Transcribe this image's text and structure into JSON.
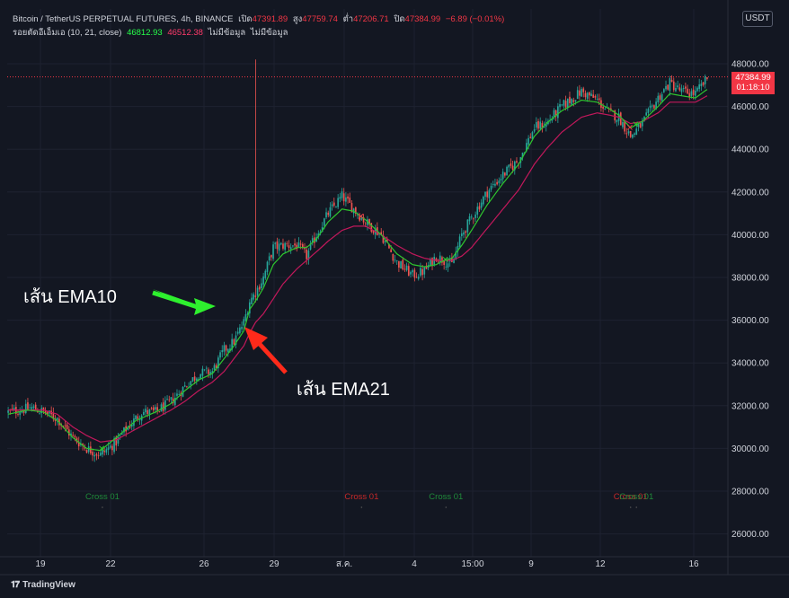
{
  "legend": {
    "symbol": "Bitcoin / TetherUS PERPETUAL FUTURES, 4h, BINANCE",
    "o_label": "เปิด",
    "o_val": "47391.89",
    "h_label": "สูง",
    "h_val": "47759.74",
    "l_label": "ต่ำ",
    "l_val": "47206.71",
    "c_label": "ปิด",
    "c_val": "47384.99",
    "change": "−6.89 (−0.01%)",
    "indicator": "รอยตัดอีเอ็มเอ (10, 21, close)",
    "ema10_val": "46812.93",
    "ema21_val": "46512.38",
    "na1": "ไม่มีข้อมูล",
    "na2": "ไม่มีข้อมูล"
  },
  "currency": "USDT",
  "price_tag": {
    "price": "47384.99",
    "countdown": "01:18:10"
  },
  "annotations": {
    "ema10": "เส้น EMA10",
    "ema21": "เส้น EMA21"
  },
  "cross_label": "Cross 01",
  "brand": "TradingView",
  "colors": {
    "up": "#26a69a",
    "down": "#ef5350",
    "ema10": "#2ec62e",
    "ema21": "#c2185b",
    "bg": "#131722"
  },
  "chart_data": {
    "type": "candlestick",
    "title": "Bitcoin / TetherUS PERPETUAL FUTURES, 4h, BINANCE",
    "ylim": [
      25000,
      49000
    ],
    "y_ticks": [
      "26000.00",
      "28000.00",
      "30000.00",
      "32000.00",
      "34000.00",
      "36000.00",
      "38000.00",
      "40000.00",
      "42000.00",
      "44000.00",
      "46000.00",
      "48000.00"
    ],
    "x_ticks": [
      {
        "label": "19",
        "x": 45
      },
      {
        "label": "22",
        "x": 123
      },
      {
        "label": "26",
        "x": 227
      },
      {
        "label": "29",
        "x": 305
      },
      {
        "label": "ส.ค.",
        "x": 383
      },
      {
        "label": "4",
        "x": 461
      },
      {
        "label": "15:00",
        "x": 526
      },
      {
        "label": "9",
        "x": 591
      },
      {
        "label": "12",
        "x": 668
      },
      {
        "label": "16",
        "x": 772
      }
    ],
    "close_anchors": [
      [
        0,
        31700
      ],
      [
        6,
        31800
      ],
      [
        12,
        31900
      ],
      [
        18,
        31700
      ],
      [
        25,
        31400
      ],
      [
        33,
        30500
      ],
      [
        40,
        30000
      ],
      [
        47,
        29700
      ],
      [
        55,
        30300
      ],
      [
        60,
        30900
      ],
      [
        68,
        31700
      ],
      [
        75,
        31700
      ],
      [
        83,
        32200
      ],
      [
        90,
        32900
      ],
      [
        97,
        33500
      ],
      [
        104,
        33600
      ],
      [
        110,
        34600
      ],
      [
        115,
        35000
      ],
      [
        120,
        35900
      ],
      [
        123,
        36900
      ],
      [
        126,
        37300
      ],
      [
        130,
        38000
      ],
      [
        135,
        39400
      ],
      [
        140,
        39500
      ],
      [
        147,
        39500
      ],
      [
        152,
        39000
      ],
      [
        157,
        40000
      ],
      [
        163,
        41000
      ],
      [
        170,
        41800
      ],
      [
        176,
        41200
      ],
      [
        182,
        40600
      ],
      [
        190,
        40000
      ],
      [
        198,
        38700
      ],
      [
        206,
        38100
      ],
      [
        212,
        38300
      ],
      [
        218,
        39000
      ],
      [
        222,
        38800
      ],
      [
        226,
        38600
      ],
      [
        231,
        40000
      ],
      [
        236,
        40800
      ],
      [
        244,
        42000
      ],
      [
        252,
        42800
      ],
      [
        260,
        43500
      ],
      [
        268,
        45000
      ],
      [
        274,
        45200
      ],
      [
        282,
        46000
      ],
      [
        292,
        46700
      ],
      [
        300,
        46300
      ],
      [
        306,
        45700
      ],
      [
        311,
        45500
      ],
      [
        317,
        44600
      ],
      [
        323,
        45200
      ],
      [
        331,
        46400
      ],
      [
        337,
        47100
      ],
      [
        343,
        46700
      ],
      [
        350,
        46600
      ],
      [
        356,
        47300
      ]
    ],
    "ema10_anchors": [
      [
        0,
        31600
      ],
      [
        10,
        31800
      ],
      [
        18,
        31700
      ],
      [
        25,
        31300
      ],
      [
        33,
        30500
      ],
      [
        40,
        30000
      ],
      [
        47,
        29900
      ],
      [
        55,
        30500
      ],
      [
        65,
        31300
      ],
      [
        75,
        31700
      ],
      [
        83,
        32100
      ],
      [
        90,
        32700
      ],
      [
        97,
        33200
      ],
      [
        104,
        33500
      ],
      [
        110,
        34200
      ],
      [
        115,
        34800
      ],
      [
        120,
        35500
      ],
      [
        123,
        36500
      ],
      [
        126,
        36900
      ],
      [
        130,
        37500
      ],
      [
        135,
        38600
      ],
      [
        140,
        39100
      ],
      [
        147,
        39400
      ],
      [
        152,
        39400
      ],
      [
        157,
        39800
      ],
      [
        163,
        40600
      ],
      [
        170,
        41200
      ],
      [
        176,
        41100
      ],
      [
        182,
        40700
      ],
      [
        190,
        40000
      ],
      [
        198,
        39100
      ],
      [
        206,
        38600
      ],
      [
        212,
        38500
      ],
      [
        218,
        38600
      ],
      [
        222,
        38800
      ],
      [
        226,
        38900
      ],
      [
        231,
        39500
      ],
      [
        236,
        40200
      ],
      [
        244,
        41400
      ],
      [
        252,
        42400
      ],
      [
        260,
        43300
      ],
      [
        268,
        44600
      ],
      [
        274,
        45200
      ],
      [
        282,
        45800
      ],
      [
        292,
        46300
      ],
      [
        300,
        46200
      ],
      [
        306,
        45900
      ],
      [
        311,
        45600
      ],
      [
        317,
        45000
      ],
      [
        323,
        45300
      ],
      [
        331,
        46000
      ],
      [
        337,
        46600
      ],
      [
        343,
        46500
      ],
      [
        350,
        46400
      ],
      [
        356,
        46800
      ]
    ],
    "ema21_anchors": [
      [
        0,
        31800
      ],
      [
        10,
        31800
      ],
      [
        18,
        31800
      ],
      [
        25,
        31600
      ],
      [
        33,
        31000
      ],
      [
        40,
        30600
      ],
      [
        47,
        30300
      ],
      [
        55,
        30400
      ],
      [
        65,
        30900
      ],
      [
        75,
        31400
      ],
      [
        83,
        31800
      ],
      [
        90,
        32200
      ],
      [
        97,
        32700
      ],
      [
        104,
        33100
      ],
      [
        110,
        33600
      ],
      [
        115,
        34200
      ],
      [
        120,
        34800
      ],
      [
        123,
        35400
      ],
      [
        126,
        35900
      ],
      [
        130,
        36300
      ],
      [
        135,
        37000
      ],
      [
        140,
        37700
      ],
      [
        147,
        38400
      ],
      [
        152,
        38800
      ],
      [
        157,
        39200
      ],
      [
        163,
        39700
      ],
      [
        170,
        40200
      ],
      [
        176,
        40400
      ],
      [
        182,
        40400
      ],
      [
        190,
        40000
      ],
      [
        198,
        39500
      ],
      [
        206,
        39100
      ],
      [
        212,
        38900
      ],
      [
        218,
        38800
      ],
      [
        222,
        38800
      ],
      [
        226,
        38800
      ],
      [
        231,
        39000
      ],
      [
        236,
        39400
      ],
      [
        244,
        40300
      ],
      [
        252,
        41200
      ],
      [
        260,
        42100
      ],
      [
        268,
        43300
      ],
      [
        274,
        44000
      ],
      [
        282,
        44800
      ],
      [
        292,
        45500
      ],
      [
        300,
        45700
      ],
      [
        306,
        45600
      ],
      [
        311,
        45500
      ],
      [
        317,
        45200
      ],
      [
        323,
        45300
      ],
      [
        331,
        45700
      ],
      [
        337,
        46200
      ],
      [
        343,
        46200
      ],
      [
        350,
        46200
      ],
      [
        356,
        46500
      ]
    ],
    "spike": {
      "index": 126,
      "high": 48200
    },
    "crosses": [
      {
        "index": 48,
        "type": "bullish"
      },
      {
        "index": 180,
        "type": "bearish"
      },
      {
        "index": 223,
        "type": "bullish"
      },
      {
        "index": 317,
        "type": "bearish"
      },
      {
        "index": 320,
        "type": "bullish"
      }
    ],
    "current_price": 47384.99
  }
}
